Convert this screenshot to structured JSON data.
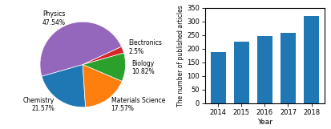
{
  "chart_data": [
    {
      "type": "pie",
      "categories": [
        "Chemistry\n21.57%",
        "Materials Science\n17.57%",
        "Biology\n10.82%",
        "Electronics\n2.5%",
        "Physics\n47.54%"
      ],
      "values": [
        21.57,
        17.57,
        10.82,
        2.5,
        47.54
      ]
    },
    {
      "type": "bar",
      "categories": [
        "2014",
        "2015",
        "2016",
        "2017",
        "2018"
      ],
      "values": [
        187,
        227,
        247,
        259,
        320
      ],
      "xlabel": "Year",
      "ylabel": "The number of published articles",
      "ylim": [
        0,
        350
      ],
      "yticks": [
        0,
        50,
        100,
        150,
        200,
        250,
        300,
        350
      ]
    }
  ]
}
